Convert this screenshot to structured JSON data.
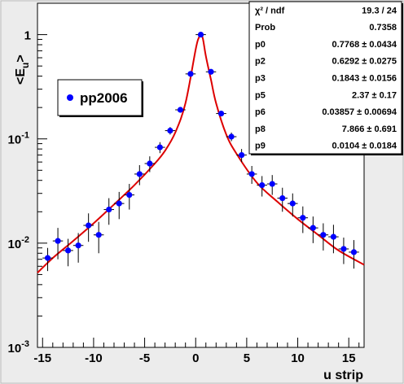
{
  "chart_data": {
    "type": "scatter",
    "title": "",
    "xlabel": "u strip",
    "ylabel_main": "<E",
    "ylabel_sub": "u",
    "ylabel_close": ">",
    "xlim": [
      -15.5,
      16.5
    ],
    "ylim": [
      0.001,
      2.0
    ],
    "yscale": "log",
    "x_ticks": [
      -15,
      -10,
      -5,
      0,
      5,
      10,
      15
    ],
    "y_ticks": [
      {
        "value": 0.001,
        "base": "10",
        "exp": "-3"
      },
      {
        "value": 0.01,
        "base": "10",
        "exp": "-2"
      },
      {
        "value": 0.1,
        "base": "10",
        "exp": "-1"
      },
      {
        "value": 1,
        "base": "1",
        "exp": ""
      }
    ],
    "grid": false,
    "legend": {
      "position": "top-left",
      "entries": [
        "pp2006"
      ]
    },
    "marker_color": "#0000ff",
    "fit_color": "#dd0000",
    "series": [
      {
        "name": "pp2006",
        "x": [
          -14.5,
          -13.5,
          -12.5,
          -11.5,
          -10.5,
          -9.5,
          -8.5,
          -7.5,
          -6.5,
          -5.5,
          -4.5,
          -3.5,
          -2.5,
          -1.5,
          -0.5,
          0.5,
          1.5,
          2.5,
          3.5,
          4.5,
          5.5,
          6.5,
          7.5,
          8.5,
          9.5,
          10.5,
          11.5,
          12.5,
          13.5,
          14.5,
          15.5
        ],
        "y": [
          0.0072,
          0.0105,
          0.0085,
          0.0095,
          0.0148,
          0.012,
          0.021,
          0.024,
          0.029,
          0.046,
          0.058,
          0.083,
          0.12,
          0.19,
          0.42,
          1.0,
          0.44,
          0.175,
          0.105,
          0.07,
          0.046,
          0.036,
          0.037,
          0.027,
          0.024,
          0.0175,
          0.014,
          0.012,
          0.0115,
          0.0088,
          0.0082
        ],
        "yerr": [
          0.0018,
          0.0035,
          0.0025,
          0.003,
          0.0045,
          0.004,
          0.006,
          0.007,
          0.008,
          0.01,
          0.01,
          0.01,
          0.01,
          0.01,
          0.015,
          0.02,
          0.015,
          0.01,
          0.01,
          0.01,
          0.009,
          0.008,
          0.008,
          0.007,
          0.006,
          0.005,
          0.004,
          0.0035,
          0.0035,
          0.0025,
          0.0025
        ]
      }
    ],
    "fit": {
      "x": [
        -15.5,
        -14,
        -12,
        -10,
        -8,
        -6,
        -4,
        -3,
        -2,
        -1,
        0,
        0.3,
        0.5,
        0.7,
        1,
        1.5,
        2,
        3,
        4,
        6,
        8,
        10,
        12,
        14,
        16.5
      ],
      "y": [
        0.0052,
        0.0072,
        0.0105,
        0.0155,
        0.0235,
        0.036,
        0.058,
        0.077,
        0.115,
        0.22,
        0.72,
        0.93,
        0.985,
        0.92,
        0.62,
        0.37,
        0.22,
        0.11,
        0.072,
        0.038,
        0.025,
        0.017,
        0.012,
        0.0085,
        0.0062
      ]
    }
  },
  "stats_box": {
    "rows": [
      {
        "label": "χ² / ndf",
        "value": "19.3 / 24"
      },
      {
        "label": "Prob",
        "value": "0.7358"
      },
      {
        "label": "p0",
        "value": "0.7768 ± 0.0434"
      },
      {
        "label": "p2",
        "value": "0.6292 ± 0.0275"
      },
      {
        "label": "p3",
        "value": "0.1843 ± 0.0156"
      },
      {
        "label": "p5",
        "value": "2.37 ± 0.17"
      },
      {
        "label": "p6",
        "value": "0.03857 ± 0.00694"
      },
      {
        "label": "p8",
        "value": "7.866 ± 0.691"
      },
      {
        "label": "p9",
        "value": "0.0104 ± 0.0184"
      }
    ]
  }
}
